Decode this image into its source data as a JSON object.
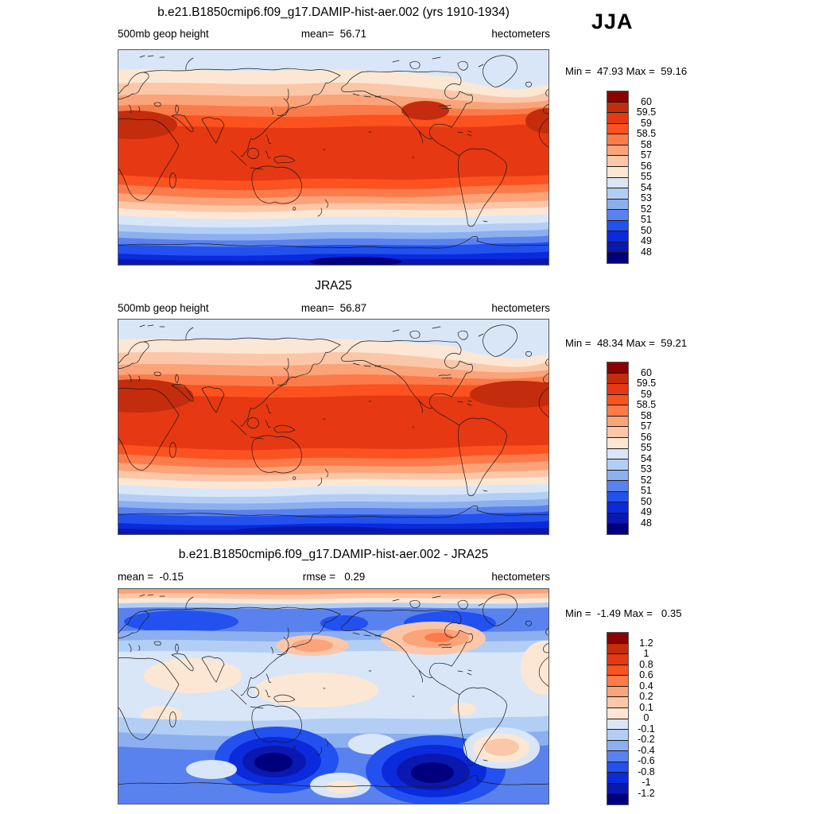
{
  "season_label": "JJA",
  "palette": [
    "#8B0000",
    "#C32C0C",
    "#E63812",
    "#FB521F",
    "#FC7B4A",
    "#FBA379",
    "#FBC7A8",
    "#FBE7D4",
    "#D9E6F8",
    "#B3CEF4",
    "#8CAFF0",
    "#5A82EE",
    "#2251F0",
    "#0A2ADC",
    "#0A18B0",
    "#00007E"
  ],
  "panels": [
    {
      "title": "b.e21.B1850cmip6.f09_g17.DAMIP-hist-aer.002 (yrs 1910-1934)",
      "stat_left": "500mb geop height",
      "stat_center": "mean=  56.71",
      "stat_right": "hectometers",
      "minmax": "Min =  47.93 Max =  59.16",
      "cbar_labels": [
        "60",
        "59.5",
        "59",
        "58.5",
        "58",
        "57",
        "56",
        "55",
        "54",
        "53",
        "52",
        "51",
        "50",
        "49",
        "48"
      ]
    },
    {
      "title": "JRA25",
      "stat_left": "500mb geop height",
      "stat_center": "mean=  56.87",
      "stat_right": "hectometers",
      "minmax": "Min =  48.34 Max =  59.21",
      "cbar_labels": [
        "60",
        "59.5",
        "59",
        "58.5",
        "58",
        "57",
        "56",
        "55",
        "54",
        "53",
        "52",
        "51",
        "50",
        "49",
        "48"
      ]
    },
    {
      "title": "b.e21.B1850cmip6.f09_g17.DAMIP-hist-aer.002 - JRA25",
      "stat_left": "mean =  -0.15",
      "stat_center": "rmse =   0.29",
      "stat_right": "hectometers",
      "minmax": "Min =  -1.49 Max =   0.35",
      "cbar_labels": [
        "1.2",
        "1",
        "0.8",
        "0.6",
        "0.4",
        "0.2",
        "0.1",
        "0",
        "-0.1",
        "-0.2",
        "-0.4",
        "-0.6",
        "-0.8",
        "-1",
        "-1.2"
      ]
    }
  ],
  "chart_data": {
    "type": "heatmap",
    "subtype": "filled-contour global maps (equirectangular, Pacific-centered), 3 stacked panels with discrete blue-red colorbars",
    "season": "JJA",
    "variable": "500mb geop height",
    "units": "hectometers",
    "legend_position": "right",
    "panels": [
      {
        "title": "b.e21.B1850cmip6.f09_g17.DAMIP-hist-aer.002 (yrs 1910-1934)",
        "mean": 56.71,
        "min": 47.93,
        "max": 59.16,
        "contour_levels": [
          48,
          49,
          50,
          51,
          52,
          53,
          54,
          55,
          56,
          57,
          58,
          58.5,
          59,
          59.5,
          60
        ],
        "pattern": "zonal bands: pale blue Arctic, broad red band (~58-59) over subtropics/tropics with darker cores (>59) over N Africa-Mideast and SW North America, grading through salmon to deep blue (<49) toward Antarctica with navy minimum over East Antarctica"
      },
      {
        "title": "JRA25",
        "mean": 56.87,
        "min": 48.34,
        "max": 59.21,
        "contour_levels": [
          48,
          49,
          50,
          51,
          52,
          53,
          54,
          55,
          56,
          57,
          58,
          58.5,
          59,
          59.5,
          60
        ],
        "pattern": "same zonal structure as model panel; darker red cores (>59) larger over N Africa-Mideast and N Atlantic/N America"
      },
      {
        "title": "b.e21.B1850cmip6.f09_g17.DAMIP-hist-aer.002 - JRA25",
        "mean": -0.15,
        "rmse": 0.29,
        "min": -1.49,
        "max": 0.35,
        "contour_levels": [
          -1.2,
          -1,
          -0.8,
          -0.6,
          -0.4,
          -0.2,
          -0.1,
          0,
          0.1,
          0.2,
          0.4,
          0.6,
          0.8,
          1,
          1.2
        ],
        "pattern": "mostly weak negative (pale blue); positive (orange ~+0.2 to +0.4) over N Pacific near Japan and over Canada/Great Lakes; thin positive strip along Arctic edge; strong negative centers (< -1.2, navy) over Southern Ocean south of Australia and south of South America"
      }
    ]
  }
}
